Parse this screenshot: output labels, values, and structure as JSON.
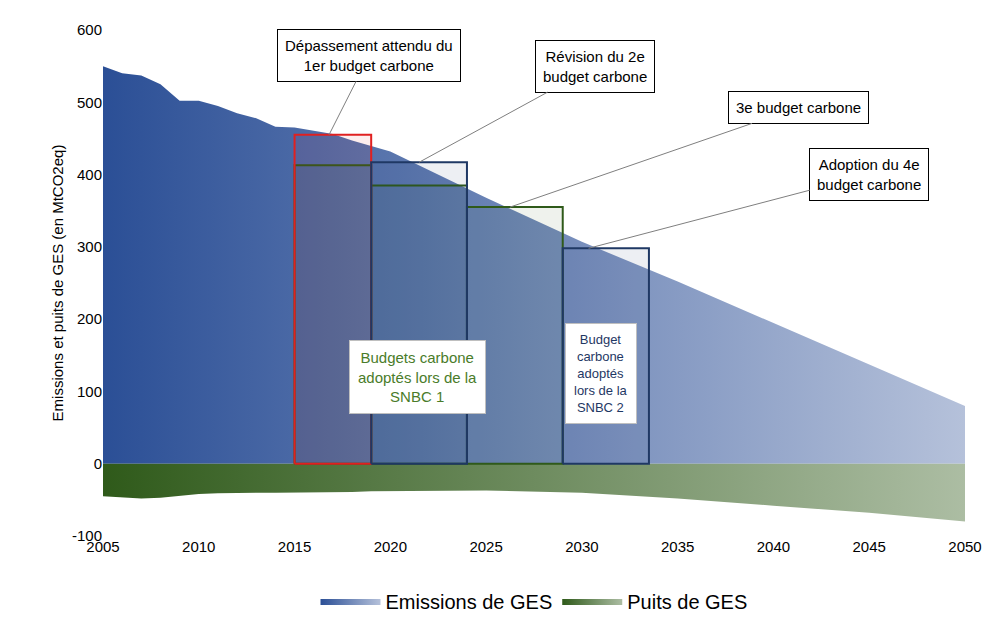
{
  "chart_data": {
    "type": "area",
    "ylabel": "Emissions et puits de GES (en MtCO2eq)",
    "x": [
      2005,
      2006,
      2007,
      2008,
      2009,
      2010,
      2011,
      2012,
      2013,
      2014,
      2015,
      2016,
      2017,
      2018,
      2019,
      2020,
      2025,
      2030,
      2035,
      2040,
      2045,
      2050
    ],
    "series": [
      {
        "name": "Emissions de GES",
        "color": "#2b4f96",
        "values": [
          550,
          540,
          537,
          525,
          502,
          502,
          495,
          485,
          478,
          466,
          465,
          461,
          456,
          447,
          440,
          432,
          368,
          307,
          252,
          195,
          138,
          80
        ]
      },
      {
        "name": "Puits de GES",
        "color": "#2f5a1a",
        "values": [
          -45,
          -47,
          -48,
          -47,
          -44,
          -42,
          -41,
          -40,
          -40,
          -40,
          -40,
          -40,
          -39,
          -39,
          -38,
          -38,
          -37,
          -40,
          -48,
          -58,
          -68,
          -80
        ]
      }
    ],
    "xlim": [
      2005,
      2050
    ],
    "ylim": [
      -100,
      600
    ],
    "xticks": [
      2005,
      2010,
      2015,
      2020,
      2025,
      2030,
      2035,
      2040,
      2045,
      2050
    ],
    "yticks": [
      -100,
      0,
      100,
      200,
      300,
      400,
      500,
      600
    ],
    "grid": false,
    "legend": "bottom",
    "budgets": [
      {
        "start": 2015,
        "end": 2019,
        "value": 413,
        "color": "#2f5a1a"
      },
      {
        "start": 2019,
        "end": 2024,
        "value": 385,
        "color": "#2f5a1a"
      },
      {
        "start": 2024,
        "end": 2029,
        "value": 355,
        "color": "#2f5a1a"
      },
      {
        "start": 2015,
        "end": 2019,
        "value": 455,
        "color": "#e02020"
      },
      {
        "start": 2019,
        "end": 2024,
        "value": 417,
        "color": "#1f3864"
      },
      {
        "start": 2029,
        "end": 2033.5,
        "value": 298,
        "color": "#1f3864"
      }
    ],
    "annotations": [
      {
        "lines": [
          "Dépassement attendu du",
          "1er budget carbone"
        ]
      },
      {
        "lines": [
          "Révision du 2e",
          "budget carbone"
        ]
      },
      {
        "lines": [
          "3e budget carbone"
        ]
      },
      {
        "lines": [
          "Adoption du 4e",
          "budget carbone"
        ]
      }
    ],
    "labels": [
      {
        "lines": [
          "Budgets carbone",
          "adoptés lors de la",
          "SNBC 1"
        ],
        "color": "#4a7c2a"
      },
      {
        "lines": [
          "Budget",
          "carbone",
          "adoptés",
          "lors de la",
          "SNBC 2"
        ],
        "color": "#1f3864"
      }
    ]
  }
}
